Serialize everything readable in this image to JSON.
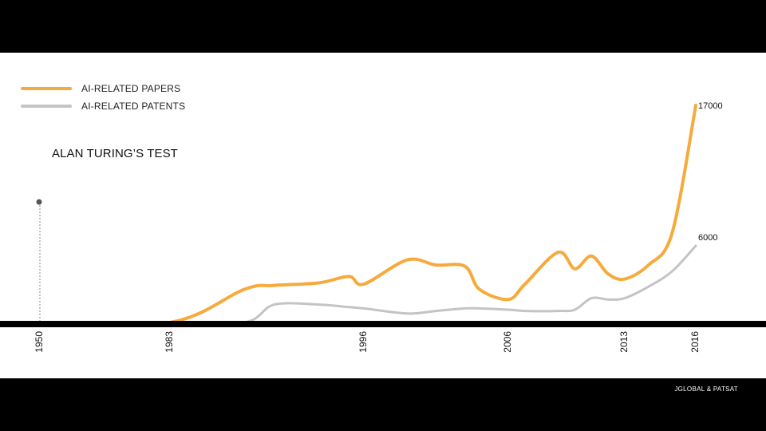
{
  "chart_data": {
    "type": "line",
    "title": "",
    "xlabel": "",
    "ylabel": "",
    "x": [
      1950,
      1983,
      1988,
      1990,
      1993,
      1995,
      1996,
      1999,
      2001,
      2003,
      2004,
      2006,
      2007,
      2009,
      2010,
      2011,
      2012,
      2013,
      2014,
      2015,
      2016
    ],
    "xlim": [
      1950,
      2016
    ],
    "ylim": [
      0,
      17000
    ],
    "tick_labels": [
      "1950",
      "1983",
      "1996",
      "2006",
      "2013",
      "2016"
    ],
    "series": [
      {
        "name": "AI-RELATED PAPERS",
        "color": "#f6aa3c",
        "values": [
          0,
          0,
          2600,
          2900,
          3100,
          3600,
          3000,
          4900,
          4500,
          4400,
          2600,
          1800,
          3000,
          5500,
          4200,
          5200,
          3800,
          3400,
          4500,
          7000,
          17000
        ]
      },
      {
        "name": "AI-RELATED PATENTS",
        "color": "#c4c4c4",
        "values": [
          0,
          0,
          0,
          1400,
          1400,
          1200,
          1100,
          700,
          900,
          1100,
          1100,
          1000,
          900,
          900,
          1000,
          1900,
          1800,
          1900,
          2800,
          4000,
          6000
        ]
      }
    ],
    "end_labels": [
      "17000",
      "6000"
    ],
    "annotations": [
      {
        "year": 1950,
        "text": "ALAN TURING’S TEST"
      }
    ]
  },
  "legend": {
    "items": [
      {
        "label": "AI-RELATED PAPERS",
        "color": "#f6aa3c"
      },
      {
        "label": "AI-RELATED PATENTS",
        "color": "#c4c4c4"
      }
    ]
  },
  "annotation": {
    "label": "ALAN TURING’S TEST"
  },
  "source": {
    "label": "JGLOBAL  & PATSAT"
  },
  "colors": {
    "frame": "#000000",
    "panel": "#ffffff",
    "axis": "#000000",
    "marker": "#555555"
  }
}
